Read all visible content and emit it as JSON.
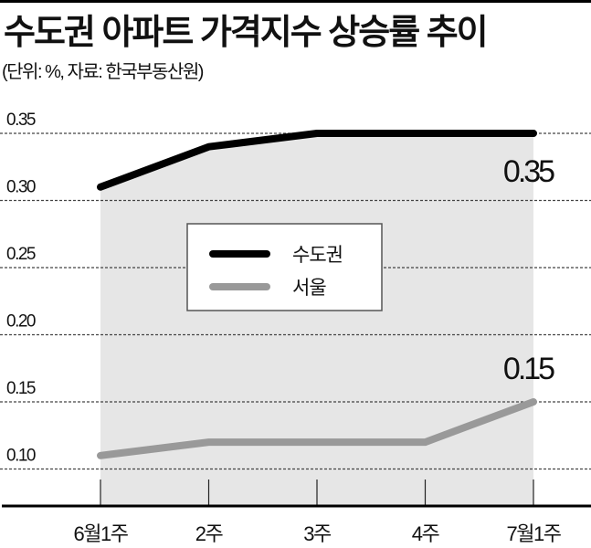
{
  "header": {
    "title": "수도권 아파트 가격지수 상승률 추이",
    "subtitle": "(단위: %, 자료: 한국부동산원)"
  },
  "colors": {
    "series_metro": "#000000",
    "series_seoul": "#999999",
    "area_fill": "#e6e6e6",
    "grid": "#444444",
    "axis": "#000000"
  },
  "chart_data": {
    "type": "line",
    "title": "수도권 아파트 가격지수 상승률 추이",
    "subtitle": "(단위: %, 자료: 한국부동산원)",
    "xlabel": "",
    "ylabel": "%",
    "categories": [
      "6월1주",
      "2주",
      "3주",
      "4주",
      "7월1주"
    ],
    "series": [
      {
        "name": "수도권",
        "values": [
          0.31,
          0.34,
          0.35,
          0.35,
          0.35
        ],
        "color": "#000000",
        "area_fill": true
      },
      {
        "name": "서울",
        "values": [
          0.11,
          0.12,
          0.12,
          0.12,
          0.15
        ],
        "color": "#999999"
      }
    ],
    "yticks": [
      "0.10",
      "0.15",
      "0.20",
      "0.25",
      "0.30",
      "0.35"
    ],
    "ylim": [
      0.07,
      0.35
    ],
    "grid": true,
    "legend_position": "center-left inside plot",
    "annotations": [
      {
        "series": "수도권",
        "category": "7월1주",
        "text": "0.35"
      },
      {
        "series": "서울",
        "category": "7월1주",
        "text": "0.15"
      }
    ]
  },
  "legend": {
    "items": [
      {
        "label": "수도권"
      },
      {
        "label": "서울"
      }
    ]
  }
}
